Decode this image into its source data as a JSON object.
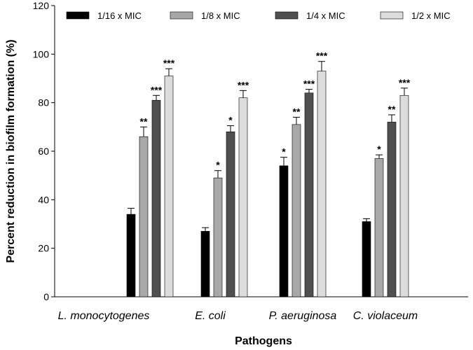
{
  "chart_data": {
    "type": "bar",
    "title": "",
    "xlabel": "Pathogens",
    "ylabel": "Percent reduction in biofilm formation (%)",
    "ylim": [
      0,
      120
    ],
    "yticks": [
      0,
      20,
      40,
      60,
      80,
      100,
      120
    ],
    "categories": [
      "L. monocytogenes",
      "E. coli",
      "P. aeruginosa",
      "C. violaceum"
    ],
    "legend_position": "top",
    "series": [
      {
        "name": "1/16 x MIC",
        "color": "#000000",
        "values": [
          34,
          27,
          54,
          31
        ],
        "errors": [
          2.5,
          1.5,
          3.5,
          1.2
        ],
        "significance": [
          "",
          "",
          "*",
          ""
        ]
      },
      {
        "name": "1/8 x MIC",
        "color": "#a8a8a8",
        "values": [
          66,
          49,
          71,
          57
        ],
        "errors": [
          4,
          3,
          3,
          1.5
        ],
        "significance": [
          "**",
          "*",
          "**",
          "*"
        ]
      },
      {
        "name": "1/4 x MIC",
        "color": "#505050",
        "values": [
          81,
          68,
          84,
          72
        ],
        "errors": [
          2,
          2.5,
          1.5,
          3
        ],
        "significance": [
          "***",
          "*",
          "***",
          "**"
        ]
      },
      {
        "name": "1/2 x MIC",
        "color": "#dcdcdc",
        "values": [
          91,
          82,
          93,
          83
        ],
        "errors": [
          3,
          3,
          4,
          3
        ],
        "significance": [
          "***",
          "***",
          "***",
          "***"
        ]
      }
    ]
  }
}
